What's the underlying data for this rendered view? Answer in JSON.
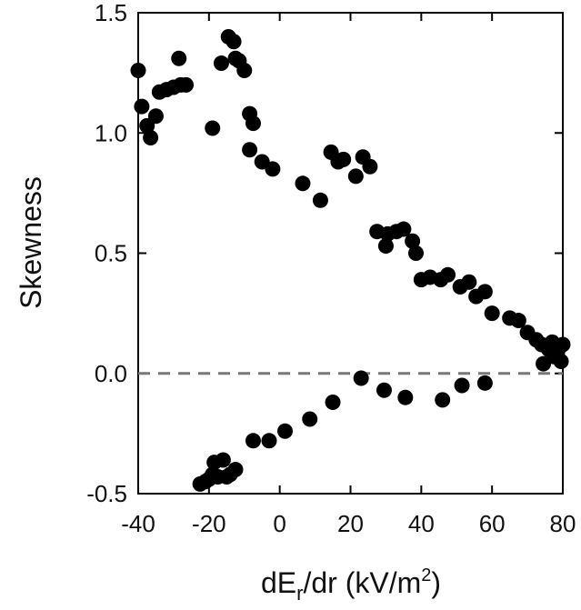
{
  "chart_data": {
    "type": "scatter",
    "xlabel": "dE_r/dr (kV/m^2)",
    "xlabel_parts": {
      "prefix": "dE",
      "sub": "r",
      "middle": "/dr (kV/m",
      "sup": "2",
      "suffix": ")"
    },
    "ylabel": "Skewness",
    "xlim": [
      -40,
      80
    ],
    "ylim": [
      -0.5,
      1.5
    ],
    "xticks": [
      -40,
      -20,
      0,
      20,
      40,
      60,
      80
    ],
    "yticks": [
      1.5,
      1.0,
      0.5,
      0.0,
      -0.5
    ],
    "xtick_labels": [
      "-40",
      "-20",
      "0",
      "20",
      "40",
      "60",
      "80"
    ],
    "ytick_labels": [
      "1.5",
      "1.0",
      "0.5",
      "0.0",
      "-0.5"
    ],
    "reference_line": {
      "y": 0.0,
      "style": "dashed",
      "color": "#777777"
    },
    "marker_color": "#000000",
    "grid": false,
    "series": [
      {
        "points": [
          [
            -40.0,
            1.26
          ],
          [
            -39.0,
            1.11
          ],
          [
            -37.5,
            1.03
          ],
          [
            -36.5,
            0.98
          ],
          [
            -35.0,
            1.07
          ],
          [
            -34.0,
            1.17
          ],
          [
            -32.0,
            1.18
          ],
          [
            -30.0,
            1.19
          ],
          [
            -28.5,
            1.31
          ],
          [
            -28.0,
            1.2
          ],
          [
            -26.5,
            1.2
          ],
          [
            -19.0,
            1.02
          ],
          [
            -16.5,
            1.29
          ],
          [
            -14.5,
            1.4
          ],
          [
            -13.0,
            1.38
          ],
          [
            -12.5,
            1.31
          ],
          [
            -11.5,
            1.3
          ],
          [
            -10.0,
            1.26
          ],
          [
            -8.5,
            1.08
          ],
          [
            -7.5,
            1.04
          ],
          [
            -8.5,
            0.93
          ],
          [
            -5.0,
            0.88
          ],
          [
            -2.0,
            0.85
          ],
          [
            6.5,
            0.79
          ],
          [
            11.5,
            0.72
          ],
          [
            14.5,
            0.92
          ],
          [
            16.5,
            0.88
          ],
          [
            18.0,
            0.89
          ],
          [
            21.5,
            0.82
          ],
          [
            23.5,
            0.9
          ],
          [
            25.5,
            0.86
          ],
          [
            27.5,
            0.59
          ],
          [
            30.0,
            0.53
          ],
          [
            30.5,
            0.58
          ],
          [
            33.0,
            0.59
          ],
          [
            35.0,
            0.6
          ],
          [
            37.5,
            0.55
          ],
          [
            38.5,
            0.5
          ],
          [
            40.0,
            0.39
          ],
          [
            42.5,
            0.4
          ],
          [
            45.5,
            0.39
          ],
          [
            47.5,
            0.41
          ],
          [
            51.0,
            0.36
          ],
          [
            53.5,
            0.38
          ],
          [
            55.5,
            0.32
          ],
          [
            58.0,
            0.34
          ],
          [
            60.0,
            0.25
          ],
          [
            65.0,
            0.23
          ],
          [
            67.5,
            0.22
          ],
          [
            70.0,
            0.17
          ],
          [
            72.5,
            0.14
          ],
          [
            74.0,
            0.12
          ],
          [
            74.5,
            0.04
          ],
          [
            76.0,
            0.1
          ],
          [
            77.0,
            0.13
          ],
          [
            77.5,
            0.07
          ],
          [
            78.5,
            0.09
          ],
          [
            79.5,
            0.05
          ],
          [
            80.0,
            0.12
          ],
          [
            -22.5,
            -0.46
          ],
          [
            -21.0,
            -0.45
          ],
          [
            -20.0,
            -0.44
          ],
          [
            -19.0,
            -0.42
          ],
          [
            -18.5,
            -0.37
          ],
          [
            -17.5,
            -0.43
          ],
          [
            -16.0,
            -0.36
          ],
          [
            -15.0,
            -0.43
          ],
          [
            -14.0,
            -0.42
          ],
          [
            -12.5,
            -0.4
          ],
          [
            -7.5,
            -0.28
          ],
          [
            -3.0,
            -0.28
          ],
          [
            1.5,
            -0.24
          ],
          [
            8.5,
            -0.19
          ],
          [
            15.0,
            -0.12
          ],
          [
            23.0,
            -0.02
          ],
          [
            29.5,
            -0.07
          ],
          [
            35.5,
            -0.1
          ],
          [
            46.0,
            -0.11
          ],
          [
            51.5,
            -0.05
          ],
          [
            58.0,
            -0.04
          ]
        ]
      }
    ]
  }
}
